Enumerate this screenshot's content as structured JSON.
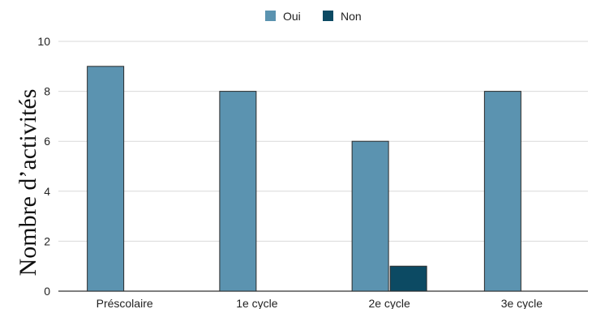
{
  "chart_data": {
    "type": "bar",
    "categories": [
      "Préscolaire",
      "1e cycle",
      "2e cycle",
      "3e cycle"
    ],
    "series": [
      {
        "name": "Oui",
        "values": [
          9,
          8,
          6,
          8
        ],
        "color": "#5b93b0"
      },
      {
        "name": "Non",
        "values": [
          0,
          0,
          1,
          0
        ],
        "color": "#0c4a63"
      }
    ],
    "ylabel": "Nombre d’activités",
    "xlabel": "",
    "ylim": [
      0,
      10
    ],
    "yticks": [
      "0",
      "2",
      "4",
      "6",
      "8",
      "10"
    ],
    "grid": true,
    "legend_position": "top-center"
  }
}
